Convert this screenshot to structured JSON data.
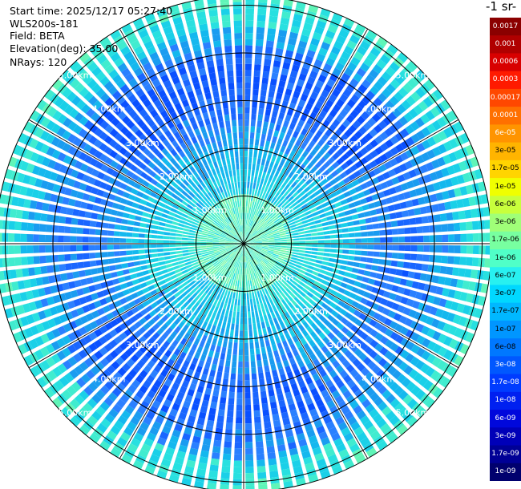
{
  "info": {
    "start_time": "Start time: 2025/12/17 05:27:40",
    "instrument": "WLS200s-181",
    "field": "Field: BETA",
    "elevation": "Elevation(deg): 35.00",
    "nrays": "NRays: 120"
  },
  "colorbar": {
    "title": "-1 sr-",
    "ticks": [
      "0.0017",
      "0.001",
      "0.0006",
      "0.0003",
      "0.00017",
      "0.0001",
      "6e-05",
      "3e-05",
      "1.7e-05",
      "1e-05",
      "6e-06",
      "3e-06",
      "1.7e-06",
      "1e-06",
      "6e-07",
      "3e-07",
      "1.7e-07",
      "1e-07",
      "6e-08",
      "3e-08",
      "1.7e-08",
      "1e-08",
      "6e-09",
      "3e-09",
      "1.7e-09",
      "1e-09"
    ],
    "colors": [
      "#8b0000",
      "#b00000",
      "#d80000",
      "#ff1a00",
      "#ff4800",
      "#ff7000",
      "#ff9400",
      "#ffb400",
      "#ffd400",
      "#f0ff00",
      "#c8ff3c",
      "#a0ff78",
      "#78ffa0",
      "#50ffc8",
      "#28f0f0",
      "#00d8ff",
      "#00b8ff",
      "#0096ff",
      "#0078ff",
      "#0058ff",
      "#003cff",
      "#0020f0",
      "#0008dc",
      "#0000b8",
      "#000096",
      "#00006e"
    ]
  },
  "chart_data": {
    "type": "ppi",
    "field": "BETA",
    "elevation_deg": 35.0,
    "nrays": 120,
    "range_rings_km": [
      1,
      2,
      3,
      4,
      5
    ],
    "ring_labels": [
      "1.00km",
      "2.00km",
      "3.00km",
      "4.00km",
      "5.00km"
    ],
    "max_range_km": 5.2,
    "radial_lines_deg": [
      0,
      30,
      60,
      90,
      120,
      150,
      180,
      210,
      240,
      270,
      300,
      330
    ],
    "dominant_value_range": [
      "3e-08",
      "3e-07"
    ]
  }
}
